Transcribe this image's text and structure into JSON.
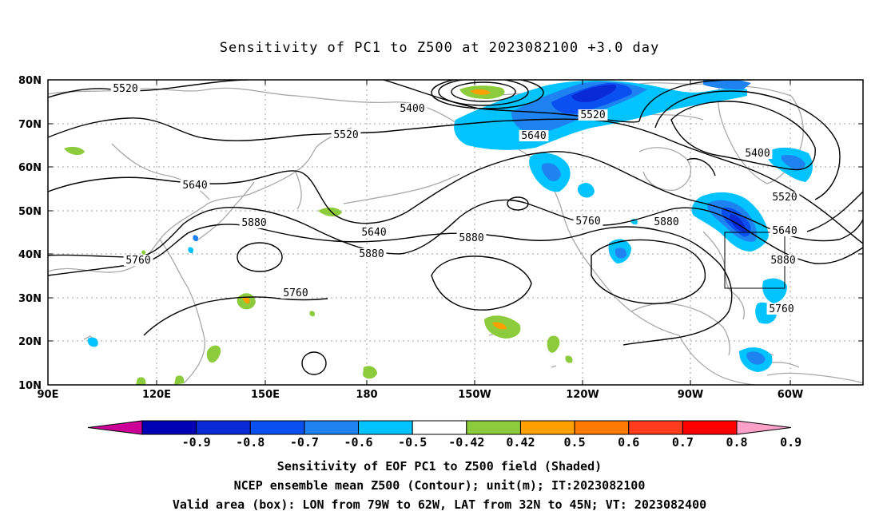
{
  "title": "Sensitivity of PC1 to Z500 at 2023082100 +3.0 day",
  "map": {
    "lon_labels": [
      "90E",
      "120E",
      "150E",
      "180",
      "150W",
      "120W",
      "90W",
      "60W"
    ],
    "lat_labels": [
      "80N",
      "70N",
      "60N",
      "50N",
      "40N",
      "30N",
      "20N",
      "10N"
    ],
    "contour_labels": [
      "5520",
      "5400",
      "5520",
      "5640",
      "5520",
      "5400",
      "5520",
      "5640",
      "5880",
      "5640",
      "5760",
      "5880",
      "5760",
      "5880",
      "5640",
      "5760",
      "5880",
      "5880",
      "5760"
    ],
    "valid_box": {
      "lon_min": -79,
      "lon_max": -62,
      "lat_min": 32,
      "lat_max": 45
    },
    "colors": {
      "coast": "#a8a8a8",
      "grid": "#a0a0a0",
      "contour": "#000000"
    }
  },
  "colorbar": {
    "labels": [
      "-0.9",
      "-0.8",
      "-0.7",
      "-0.6",
      "-0.5",
      "-0.42",
      "0.42",
      "0.5",
      "0.6",
      "0.7",
      "0.8",
      "0.9"
    ],
    "colors": [
      "#cc0099",
      "#0000b4",
      "#0a2ad6",
      "#0a50f0",
      "#1e82f0",
      "#00c3ff",
      "#ffffff",
      "#8ccc3c",
      "#ffa000",
      "#ff7a00",
      "#ff3c1e",
      "#ff0000",
      "#ffa0c8"
    ]
  },
  "caption": [
    "Sensitivity of EOF PC1 to Z500 field (Shaded)",
    "NCEP ensemble mean Z500 (Contour); unit(m); IT:2023082100",
    "Valid area (box): LON from 79W to 62W, LAT from 32N to 45N; VT: 2023082400"
  ]
}
